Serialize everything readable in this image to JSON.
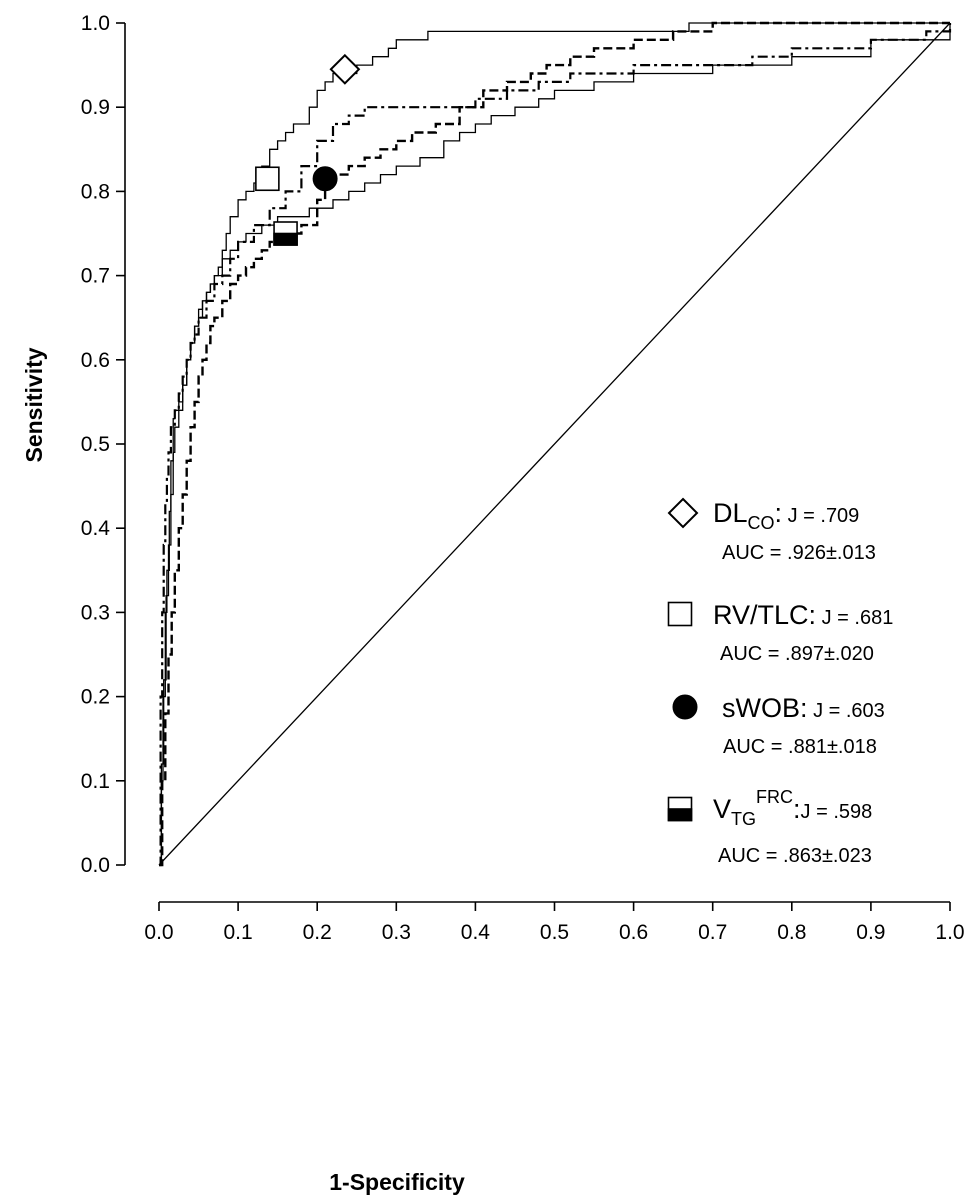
{
  "chart_data": {
    "type": "line",
    "xlabel": "1-Specificity",
    "ylabel": "Sensitivity",
    "xlim": [
      0,
      1
    ],
    "ylim": [
      0,
      1
    ],
    "xticks": [
      "0.0",
      "0.1",
      "0.2",
      "0.3",
      "0.4",
      "0.5",
      "0.6",
      "0.7",
      "0.8",
      "0.9",
      "1.0"
    ],
    "yticks": [
      "0.0",
      "0.1",
      "0.2",
      "0.3",
      "0.4",
      "0.5",
      "0.6",
      "0.7",
      "0.8",
      "0.9",
      "1.0"
    ],
    "grid": false,
    "legend_position": "right",
    "reference_line": {
      "x": [
        0,
        1
      ],
      "y": [
        0,
        1
      ]
    },
    "series": [
      {
        "legend_name": "DL",
        "legend_sub": "CO",
        "legend_sup": "",
        "legend_sep": ":",
        "j_label": "J = .709",
        "auc_label": "AUC = .926±.013",
        "marker": "diamond",
        "line_style": "solid",
        "optimal_point": {
          "x": 0.235,
          "y": 0.945
        },
        "x": [
          0,
          0.003,
          0.005,
          0.008,
          0.01,
          0.013,
          0.015,
          0.018,
          0.02,
          0.025,
          0.03,
          0.035,
          0.04,
          0.045,
          0.05,
          0.055,
          0.06,
          0.065,
          0.07,
          0.08,
          0.085,
          0.09,
          0.1,
          0.11,
          0.12,
          0.13,
          0.14,
          0.15,
          0.16,
          0.17,
          0.19,
          0.2,
          0.21,
          0.22,
          0.25,
          0.27,
          0.29,
          0.3,
          0.32,
          0.34,
          0.36,
          0.42,
          0.55,
          0.67,
          1.0
        ],
        "y": [
          0,
          0.1,
          0.2,
          0.3,
          0.35,
          0.42,
          0.48,
          0.53,
          0.54,
          0.55,
          0.57,
          0.6,
          0.62,
          0.64,
          0.65,
          0.67,
          0.68,
          0.69,
          0.7,
          0.73,
          0.75,
          0.77,
          0.79,
          0.8,
          0.81,
          0.83,
          0.85,
          0.86,
          0.87,
          0.88,
          0.9,
          0.92,
          0.93,
          0.94,
          0.95,
          0.96,
          0.97,
          0.98,
          0.98,
          0.99,
          0.99,
          0.99,
          0.99,
          1.0,
          1.0
        ]
      },
      {
        "legend_name": "RV/TLC",
        "legend_sub": "",
        "legend_sup": "",
        "legend_sep": ":",
        "j_label": "J = .681",
        "auc_label": "AUC = .897±.020",
        "marker": "square",
        "line_style": "solid",
        "optimal_point": {
          "x": 0.137,
          "y": 0.815
        },
        "x": [
          0,
          0.003,
          0.006,
          0.009,
          0.012,
          0.015,
          0.018,
          0.02,
          0.025,
          0.03,
          0.035,
          0.04,
          0.045,
          0.05,
          0.055,
          0.06,
          0.065,
          0.07,
          0.075,
          0.08,
          0.09,
          0.1,
          0.11,
          0.13,
          0.15,
          0.17,
          0.19,
          0.2,
          0.22,
          0.24,
          0.26,
          0.28,
          0.3,
          0.33,
          0.36,
          0.38,
          0.4,
          0.42,
          0.45,
          0.48,
          0.5,
          0.55,
          0.6,
          0.7,
          0.75,
          0.8,
          0.9,
          1.0
        ],
        "y": [
          0,
          0.12,
          0.22,
          0.32,
          0.38,
          0.44,
          0.49,
          0.52,
          0.54,
          0.57,
          0.6,
          0.62,
          0.64,
          0.66,
          0.67,
          0.68,
          0.69,
          0.7,
          0.71,
          0.72,
          0.73,
          0.74,
          0.75,
          0.76,
          0.77,
          0.77,
          0.78,
          0.78,
          0.79,
          0.8,
          0.81,
          0.82,
          0.83,
          0.84,
          0.86,
          0.87,
          0.88,
          0.89,
          0.9,
          0.91,
          0.92,
          0.93,
          0.94,
          0.95,
          0.95,
          0.96,
          0.98,
          1.0
        ]
      },
      {
        "legend_name": "sWOB",
        "legend_sub": "",
        "legend_sup": "",
        "legend_sep": ":",
        "j_label": "J = .603",
        "auc_label": "AUC = .881±.018",
        "marker": "circle",
        "line_style": "dashed",
        "optimal_point": {
          "x": 0.21,
          "y": 0.815
        },
        "x": [
          0,
          0.004,
          0.008,
          0.012,
          0.016,
          0.02,
          0.025,
          0.03,
          0.035,
          0.04,
          0.045,
          0.05,
          0.055,
          0.06,
          0.065,
          0.07,
          0.08,
          0.09,
          0.1,
          0.11,
          0.12,
          0.13,
          0.14,
          0.15,
          0.16,
          0.18,
          0.2,
          0.21,
          0.22,
          0.24,
          0.26,
          0.28,
          0.3,
          0.32,
          0.35,
          0.38,
          0.41,
          0.44,
          0.47,
          0.49,
          0.52,
          0.55,
          0.6,
          0.65,
          0.7,
          0.8,
          0.9,
          1.0
        ],
        "y": [
          0,
          0.1,
          0.18,
          0.25,
          0.3,
          0.35,
          0.4,
          0.44,
          0.48,
          0.52,
          0.55,
          0.58,
          0.6,
          0.62,
          0.64,
          0.65,
          0.67,
          0.69,
          0.7,
          0.71,
          0.72,
          0.73,
          0.74,
          0.745,
          0.75,
          0.76,
          0.79,
          0.81,
          0.82,
          0.83,
          0.84,
          0.85,
          0.86,
          0.87,
          0.88,
          0.9,
          0.92,
          0.93,
          0.94,
          0.95,
          0.96,
          0.97,
          0.98,
          0.99,
          1.0,
          1.0,
          1.0,
          1.0
        ]
      },
      {
        "legend_name": "V",
        "legend_sub": "TG",
        "legend_sup": "FRC",
        "legend_sep": ":",
        "j_label": "J = .598",
        "auc_label": "AUC = .863±.023",
        "marker": "half-filled-square",
        "line_style": "dash-dot",
        "optimal_point": {
          "x": 0.16,
          "y": 0.75
        },
        "x": [
          0,
          0.002,
          0.004,
          0.006,
          0.008,
          0.01,
          0.012,
          0.015,
          0.02,
          0.025,
          0.03,
          0.035,
          0.04,
          0.045,
          0.05,
          0.06,
          0.07,
          0.08,
          0.09,
          0.1,
          0.12,
          0.14,
          0.16,
          0.18,
          0.2,
          0.22,
          0.24,
          0.26,
          0.28,
          0.32,
          0.36,
          0.4,
          0.44,
          0.48,
          0.52,
          0.56,
          0.6,
          0.65,
          0.7,
          0.75,
          0.8,
          0.9,
          0.97,
          1.0
        ],
        "y": [
          0,
          0.2,
          0.3,
          0.38,
          0.43,
          0.46,
          0.49,
          0.52,
          0.54,
          0.56,
          0.58,
          0.6,
          0.62,
          0.63,
          0.65,
          0.67,
          0.69,
          0.7,
          0.72,
          0.74,
          0.76,
          0.78,
          0.8,
          0.83,
          0.86,
          0.88,
          0.89,
          0.9,
          0.9,
          0.9,
          0.9,
          0.91,
          0.92,
          0.93,
          0.94,
          0.94,
          0.95,
          0.95,
          0.95,
          0.96,
          0.97,
          0.98,
          0.99,
          1.0
        ]
      }
    ]
  }
}
